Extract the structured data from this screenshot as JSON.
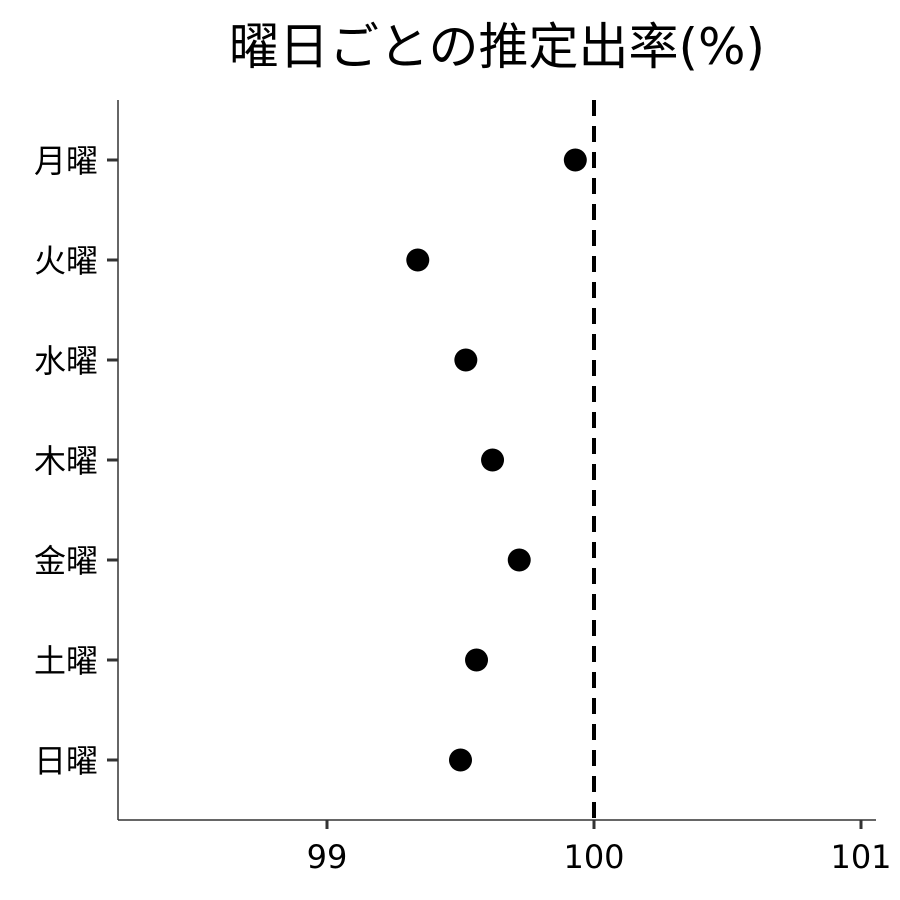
{
  "chart_data": {
    "type": "scatter",
    "title": "曜日ごとの推定出率(%)",
    "xlabel": "",
    "ylabel": "",
    "xlim": [
      98.2,
      101.05
    ],
    "x_ticks": [
      99,
      100,
      101
    ],
    "categories": [
      "月曜",
      "火曜",
      "水曜",
      "木曜",
      "金曜",
      "土曜",
      "日曜"
    ],
    "values": [
      99.93,
      99.34,
      99.52,
      99.62,
      99.72,
      99.56,
      99.5
    ],
    "reference_line": {
      "x": 100,
      "style": "dashed"
    },
    "grid": false,
    "legend": "none",
    "point_color": "#000000"
  }
}
